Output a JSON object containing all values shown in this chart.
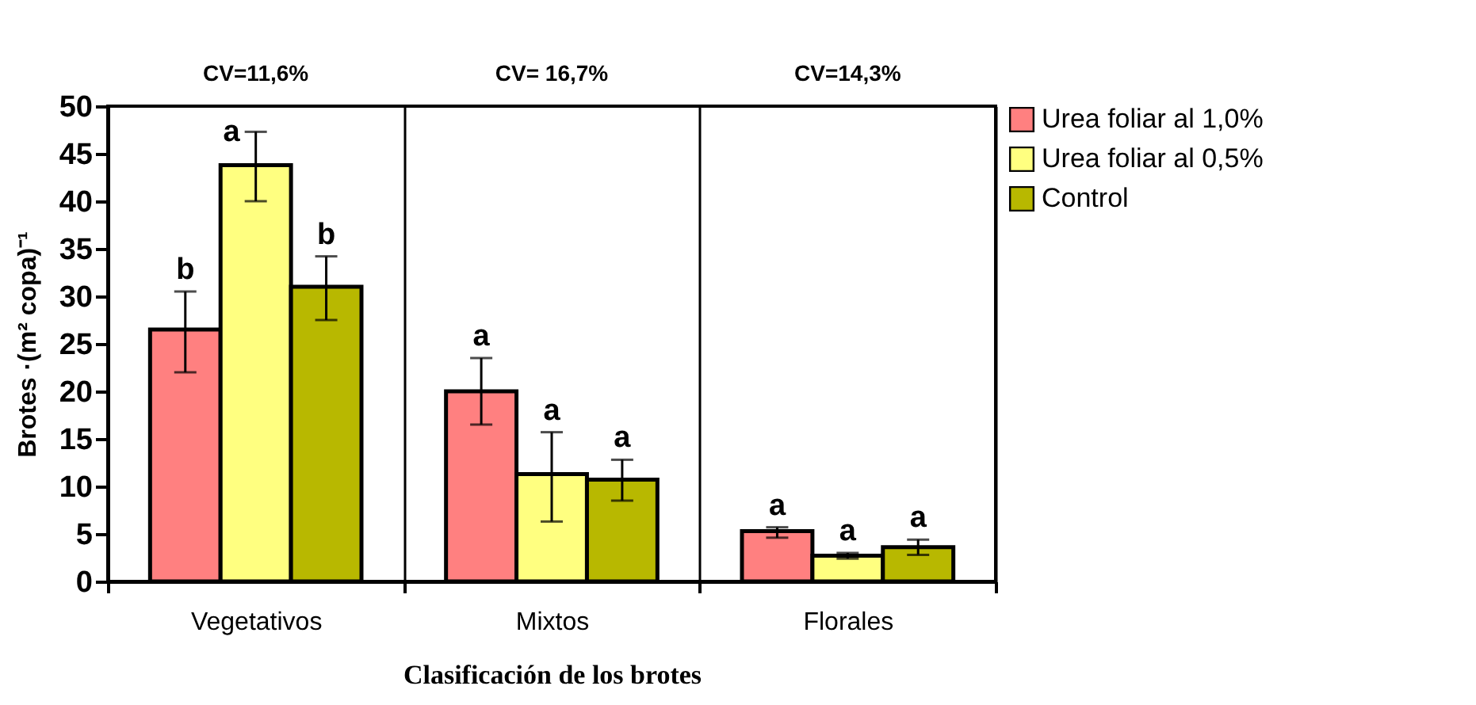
{
  "chart_data": {
    "type": "bar",
    "xlabel": "Clasificación de los brotes",
    "ylabel": "Brotes ·(m² copa)⁻¹",
    "categories": [
      "Vegetativos",
      "Mixtos",
      "Florales"
    ],
    "series": [
      {
        "name": "Urea foliar al 1,0%",
        "color": "#ff8080",
        "values": [
          26.5,
          20,
          5.3
        ],
        "errors": [
          [
            22,
            30.5
          ],
          [
            16.5,
            23.5
          ],
          [
            4.6,
            5.7
          ]
        ],
        "value_labels": [
          "b",
          "a",
          "a"
        ]
      },
      {
        "name": "Urea foliar al 0,5%",
        "color": "#ffff80",
        "values": [
          43.8,
          11.3,
          2.7
        ],
        "errors": [
          [
            40,
            47.3
          ],
          [
            6.3,
            15.7
          ],
          [
            2.4,
            3
          ]
        ],
        "value_labels": [
          "a",
          "a",
          "a"
        ]
      },
      {
        "name": "Control",
        "color": "#b8b800",
        "values": [
          31,
          10.7,
          3.6
        ],
        "errors": [
          [
            27.5,
            34.2
          ],
          [
            8.5,
            12.8
          ],
          [
            2.8,
            4.4
          ]
        ],
        "value_labels": [
          "b",
          "a",
          "a"
        ]
      }
    ],
    "annotations": [
      "CV=11,6%",
      "CV= 16,7%",
      "CV=14,3%"
    ],
    "ylim": [
      0,
      50
    ],
    "yticks": [
      0,
      5,
      10,
      15,
      20,
      25,
      30,
      35,
      40,
      45,
      50
    ],
    "grid": "x",
    "legend": "top right"
  }
}
